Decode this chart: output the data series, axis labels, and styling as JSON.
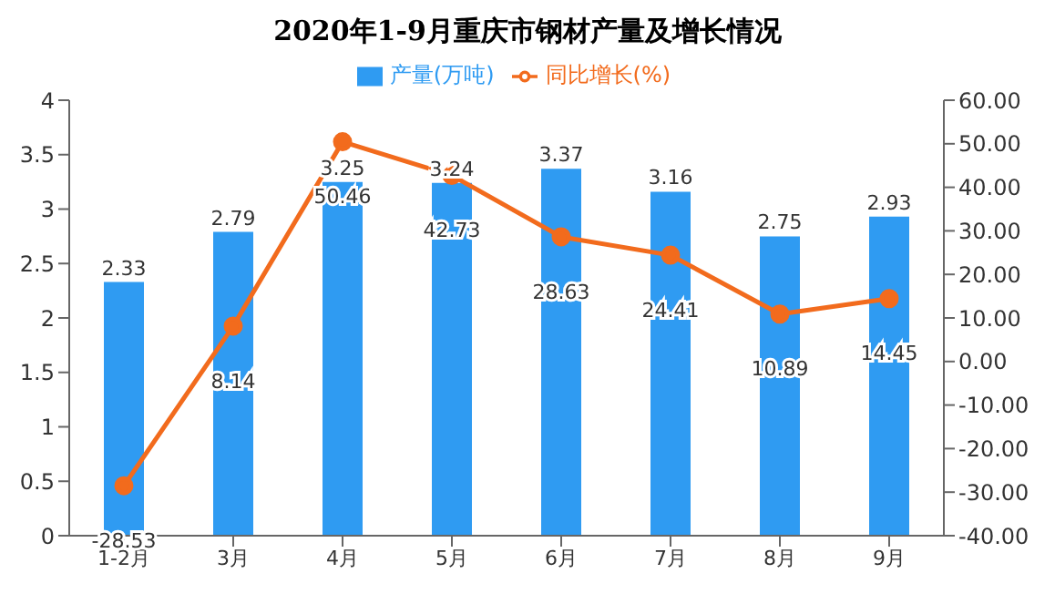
{
  "chart_data": {
    "type": "bar",
    "title": "2020年1-9月重庆市钢材产量及增长情况",
    "categories": [
      "1-2月",
      "3月",
      "4月",
      "5月",
      "6月",
      "7月",
      "8月",
      "9月"
    ],
    "series": [
      {
        "name": "产量(万吨)",
        "color": "#2f9bf2",
        "values": [
          2.33,
          2.79,
          3.25,
          3.24,
          3.37,
          3.16,
          2.75,
          2.93
        ]
      },
      {
        "name": "同比增长(%)",
        "type": "line",
        "axis": "y2",
        "color": "#f26b1d",
        "values": [
          -28.53,
          8.14,
          50.46,
          42.73,
          28.63,
          24.41,
          10.89,
          14.45
        ]
      }
    ],
    "ylim": [
      0,
      4
    ],
    "yticks": [
      0,
      0.5,
      1,
      1.5,
      2,
      2.5,
      3,
      3.5,
      4
    ],
    "y2lim": [
      -40,
      60
    ],
    "y2ticks": [
      {
        "value": -40,
        "label": "-40.00"
      },
      {
        "value": -30,
        "label": "-30.00"
      },
      {
        "value": -20,
        "label": "-20.00"
      },
      {
        "value": -10,
        "label": "-10.00"
      },
      {
        "value": 0,
        "label": "0.00"
      },
      {
        "value": 10,
        "label": "10.00"
      },
      {
        "value": 20,
        "label": "20.00"
      },
      {
        "value": 30,
        "label": "30.00"
      },
      {
        "value": 40,
        "label": "40.00"
      },
      {
        "value": 50,
        "label": "50.00"
      },
      {
        "value": 60,
        "label": "60.00"
      }
    ],
    "data_labels": true,
    "legend": "top",
    "marker": "circle",
    "line_style": "solid"
  }
}
